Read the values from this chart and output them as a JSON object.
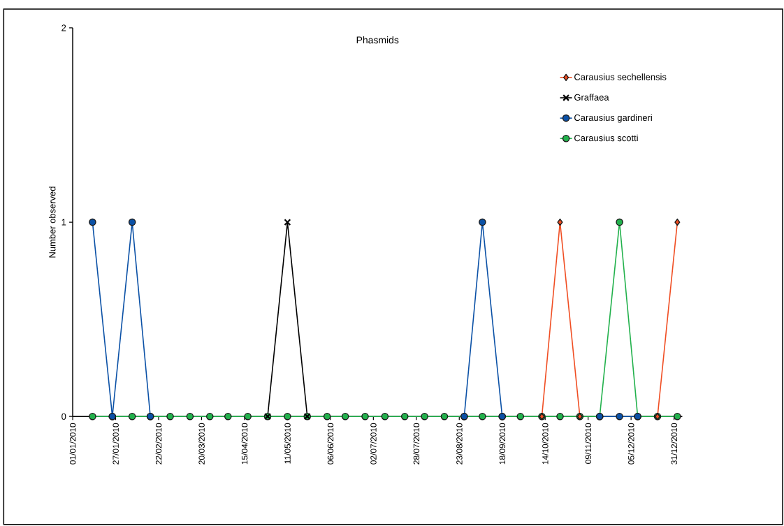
{
  "chart_data": {
    "type": "line",
    "title": "Phasmids",
    "ylabel": "Number observed",
    "x": [
      "2010-01-13",
      "2010-01-25",
      "2010-02-06",
      "2010-02-17",
      "2010-03-01",
      "2010-03-13",
      "2010-03-25",
      "2010-04-05",
      "2010-04-17",
      "2010-04-29",
      "2010-05-11",
      "2010-05-23",
      "2010-06-04",
      "2010-06-15",
      "2010-06-27",
      "2010-07-09",
      "2010-07-21",
      "2010-08-02",
      "2010-08-14",
      "2010-08-26",
      "2010-09-06",
      "2010-09-18",
      "2010-09-29",
      "2010-10-12",
      "2010-10-23",
      "2010-11-04",
      "2010-11-16",
      "2010-11-28",
      "2010-12-09",
      "2010-12-21",
      "2011-01-02"
    ],
    "series": [
      {
        "name": "Carausius sechellensis",
        "color": "#f04e23",
        "marker": "diamond",
        "values": [
          null,
          null,
          null,
          null,
          null,
          null,
          null,
          null,
          null,
          null,
          null,
          null,
          null,
          null,
          null,
          null,
          null,
          null,
          null,
          null,
          null,
          null,
          null,
          0,
          1,
          0,
          null,
          null,
          null,
          0,
          1
        ]
      },
      {
        "name": "Graffaea",
        "color": "#000000",
        "marker": "cross",
        "values": [
          null,
          null,
          null,
          null,
          null,
          null,
          null,
          null,
          null,
          0,
          1,
          0,
          null,
          null,
          null,
          null,
          null,
          null,
          null,
          null,
          null,
          null,
          null,
          null,
          null,
          null,
          null,
          null,
          null,
          null,
          null
        ]
      },
      {
        "name": "Carausius gardineri",
        "color": "#0b51a6",
        "marker": "circle",
        "values": [
          1,
          0,
          1,
          0,
          null,
          null,
          null,
          null,
          null,
          null,
          null,
          null,
          null,
          null,
          null,
          null,
          null,
          null,
          null,
          0,
          1,
          0,
          null,
          null,
          null,
          null,
          0,
          0,
          0,
          null,
          null
        ]
      },
      {
        "name": "Carausius scotti",
        "color": "#22b14c",
        "marker": "circle",
        "values": [
          0,
          0,
          0,
          0,
          0,
          0,
          0,
          0,
          0,
          0,
          0,
          0,
          0,
          0,
          0,
          0,
          0,
          0,
          0,
          0,
          0,
          0,
          0,
          0,
          0,
          0,
          0,
          1,
          0,
          0,
          0
        ]
      }
    ],
    "xlim": [
      "2010-01-01",
      "2011-01-05"
    ],
    "xticks": [
      {
        "value": "2010-01-01",
        "label": "01/01/2010"
      },
      {
        "value": "2010-01-27",
        "label": "27/01/2010"
      },
      {
        "value": "2010-02-22",
        "label": "22/02/2010"
      },
      {
        "value": "2010-03-20",
        "label": "20/03/2010"
      },
      {
        "value": "2010-04-15",
        "label": "15/04/2010"
      },
      {
        "value": "2010-05-11",
        "label": "11/05/2010"
      },
      {
        "value": "2010-06-06",
        "label": "06/06/2010"
      },
      {
        "value": "2010-07-02",
        "label": "02/07/2010"
      },
      {
        "value": "2010-07-28",
        "label": "28/07/2010"
      },
      {
        "value": "2010-08-23",
        "label": "23/08/2010"
      },
      {
        "value": "2010-09-18",
        "label": "18/09/2010"
      },
      {
        "value": "2010-10-14",
        "label": "14/10/2010"
      },
      {
        "value": "2010-11-09",
        "label": "09/11/2010"
      },
      {
        "value": "2010-12-05",
        "label": "05/12/2010"
      },
      {
        "value": "2010-12-31",
        "label": "31/12/2010"
      }
    ],
    "ylim": [
      0,
      2
    ],
    "yticks": [
      0,
      1,
      2
    ],
    "grid": false,
    "legend": "top right"
  }
}
